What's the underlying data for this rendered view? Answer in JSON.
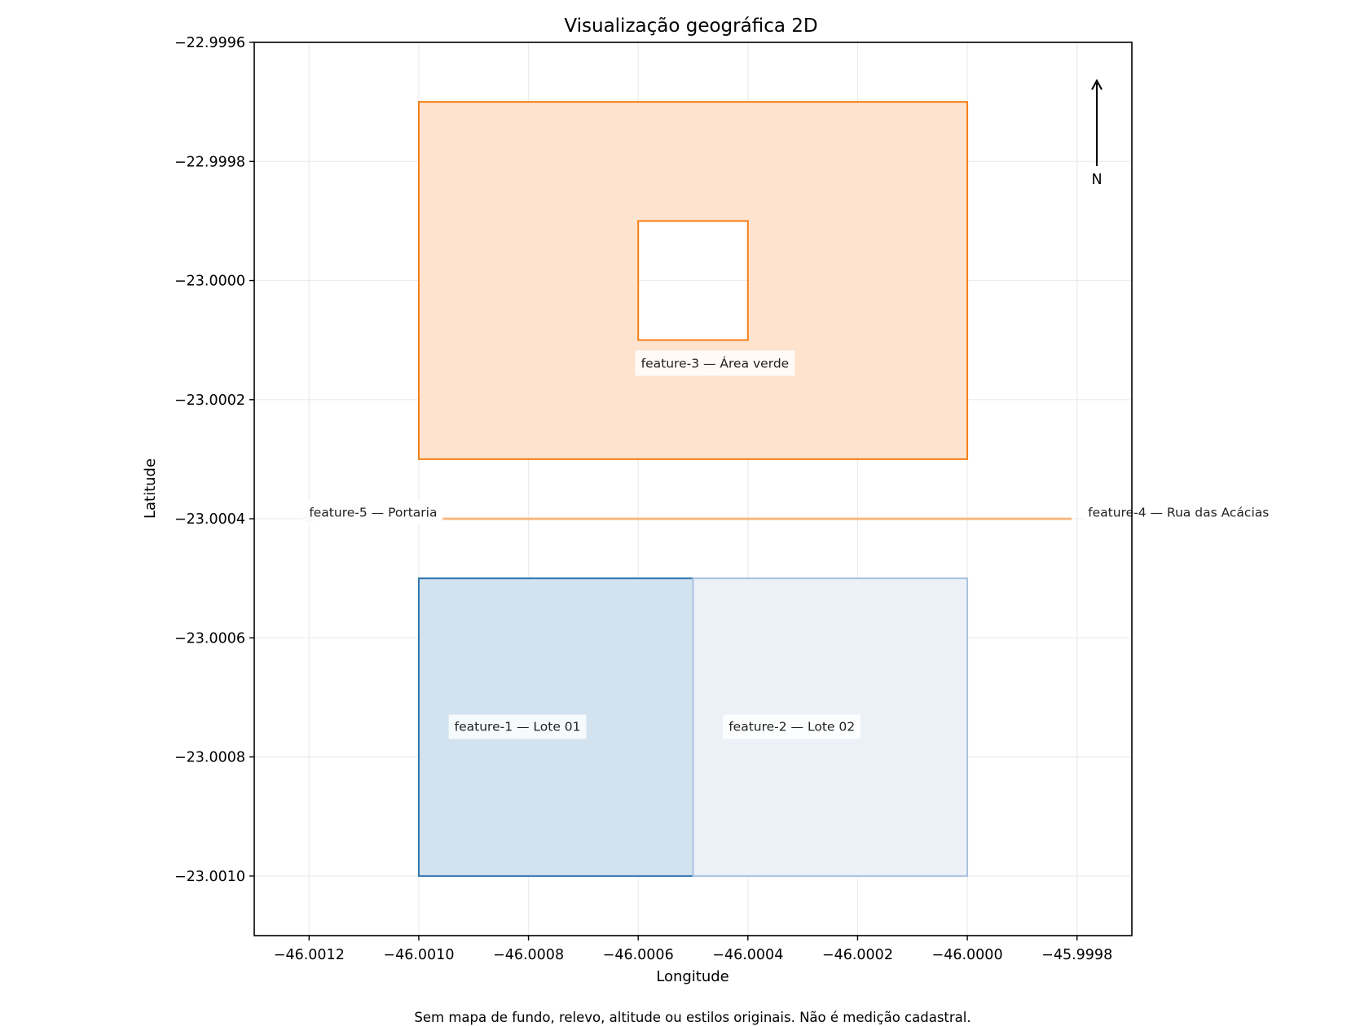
{
  "chart_data": {
    "type": "map",
    "title": "Visualização geográfica 2D",
    "xlabel": "Longitude",
    "ylabel": "Latitude",
    "xlim": [
      -46.0013,
      -45.9997
    ],
    "ylim": [
      -23.0011,
      -22.9996
    ],
    "xticks": [
      -46.0012,
      -46.001,
      -46.0008,
      -46.0006,
      -46.0004,
      -46.0002,
      -46.0,
      -45.9998
    ],
    "xtick_labels": [
      "−46.0012",
      "−46.0010",
      "−46.0008",
      "−46.0006",
      "−46.0004",
      "−46.0002",
      "−46.0000",
      "−45.9998"
    ],
    "yticks": [
      -22.9996,
      -22.9998,
      -23.0,
      -23.0002,
      -23.0004,
      -23.0006,
      -23.0008,
      -23.001
    ],
    "ytick_labels": [
      "−22.9996",
      "−22.9998",
      "−23.0000",
      "−23.0002",
      "−23.0004",
      "−23.0006",
      "−23.0008",
      "−23.0010"
    ],
    "grid": true,
    "north_arrow": {
      "label": "N",
      "position": "top-right"
    },
    "footnote": "Sem mapa de fundo, relevo, altitude ou estilos originais. Não é medição cadastral.",
    "features": [
      {
        "id": "feature-1",
        "label": "feature-1 — Lote 01",
        "geometry": "polygon",
        "ring": [
          [
            -46.001,
            -23.0005
          ],
          [
            -46.0005,
            -23.0005
          ],
          [
            -46.0005,
            -23.001
          ],
          [
            -46.001,
            -23.001
          ]
        ],
        "label_at": [
          -46.00082,
          -23.00075
        ],
        "fill": "#d2e2ef",
        "stroke": "#2f75b0"
      },
      {
        "id": "feature-2",
        "label": "feature-2 — Lote 02",
        "geometry": "polygon",
        "ring": [
          [
            -46.0005,
            -23.0005
          ],
          [
            -46.0,
            -23.0005
          ],
          [
            -46.0,
            -23.001
          ],
          [
            -46.0005,
            -23.001
          ]
        ],
        "label_at": [
          -46.00032,
          -23.00075
        ],
        "fill": "#ecf1f8",
        "stroke": "#a9c1df"
      },
      {
        "id": "feature-3",
        "label": "feature-3 — Área verde",
        "geometry": "polygon-with-hole",
        "ring": [
          [
            -46.001,
            -22.9997
          ],
          [
            -46.0,
            -22.9997
          ],
          [
            -46.0,
            -23.0003
          ],
          [
            -46.001,
            -23.0003
          ]
        ],
        "hole": [
          [
            -46.0006,
            -22.9999
          ],
          [
            -46.0004,
            -22.9999
          ],
          [
            -46.0004,
            -23.0001
          ],
          [
            -46.0006,
            -23.0001
          ]
        ],
        "label_at": [
          -46.00046,
          -23.00014
        ],
        "fill": "#fee4cf",
        "stroke": "#f57f17"
      },
      {
        "id": "feature-4",
        "label": "feature-4 — Rua das Acácias",
        "geometry": "line",
        "coords": [
          [
            -46.00096,
            -23.0004
          ],
          [
            -45.99981,
            -23.0004
          ]
        ],
        "label_at": [
          -45.99978,
          -23.00039
        ],
        "stroke": "#f8b77f"
      },
      {
        "id": "feature-5",
        "label": "feature-5 — Portaria",
        "geometry": "point",
        "coords": [
          -46.0012,
          -23.0004
        ],
        "label_at": [
          -46.0012,
          -23.00039
        ],
        "fill": "#d6ead3"
      }
    ]
  }
}
